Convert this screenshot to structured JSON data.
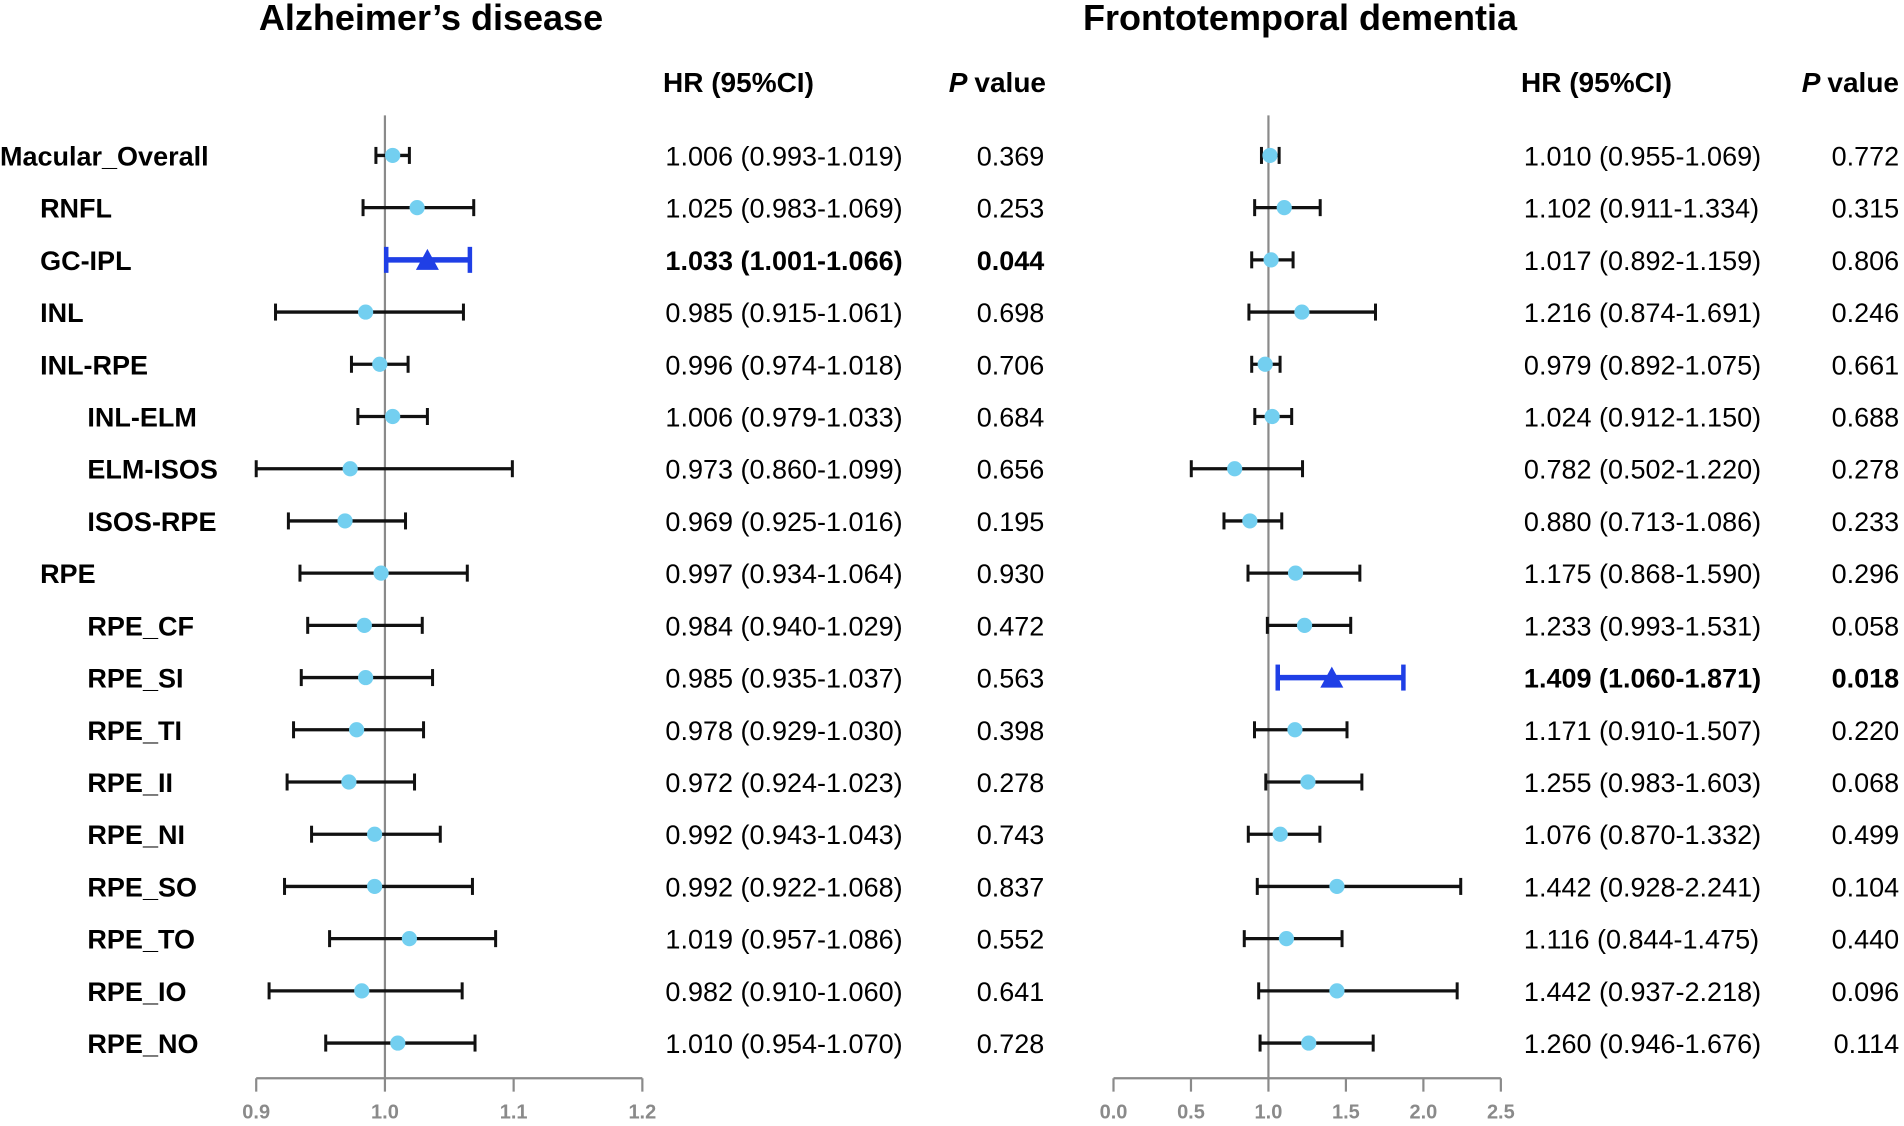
{
  "colors": {
    "point": "#73cff0",
    "significant": "#1f3fe6",
    "whisker": "#111111",
    "axis": "#8a8a8a"
  },
  "chart_data": {
    "type": "forest",
    "row_labels": [
      {
        "label": "Macular_Overall",
        "level": 0
      },
      {
        "label": "RNFL",
        "level": 1
      },
      {
        "label": "GC-IPL",
        "level": 1
      },
      {
        "label": "INL",
        "level": 1
      },
      {
        "label": "INL-RPE",
        "level": 1
      },
      {
        "label": "INL-ELM",
        "level": 2
      },
      {
        "label": "ELM-ISOS",
        "level": 2
      },
      {
        "label": "ISOS-RPE",
        "level": 2
      },
      {
        "label": "RPE",
        "level": 1
      },
      {
        "label": "RPE_CF",
        "level": 2
      },
      {
        "label": "RPE_SI",
        "level": 2
      },
      {
        "label": "RPE_TI",
        "level": 2
      },
      {
        "label": "RPE_II",
        "level": 2
      },
      {
        "label": "RPE_NI",
        "level": 2
      },
      {
        "label": "RPE_SO",
        "level": 2
      },
      {
        "label": "RPE_TO",
        "level": 2
      },
      {
        "label": "RPE_IO",
        "level": 2
      },
      {
        "label": "RPE_NO",
        "level": 2
      }
    ],
    "panels": [
      {
        "title": "Alzheimer’s disease",
        "hr_header": "HR (95%CI)",
        "p_header": {
          "italic": "P",
          "rest": "value"
        },
        "xlim": [
          0.9,
          1.2
        ],
        "xticks": [
          0.9,
          1.0,
          1.1,
          1.2
        ],
        "xtick_labels": [
          "0.9",
          "1.0",
          "1.1",
          "1.2"
        ],
        "reference_line": 1.0,
        "rows": [
          {
            "hr": 1.006,
            "lower": 0.993,
            "upper": 1.019,
            "hr_ci": "1.006 (0.993-1.019)",
            "p": "0.369",
            "significant": false
          },
          {
            "hr": 1.025,
            "lower": 0.983,
            "upper": 1.069,
            "hr_ci": "1.025 (0.983-1.069)",
            "p": "0.253",
            "significant": false
          },
          {
            "hr": 1.033,
            "lower": 1.001,
            "upper": 1.066,
            "hr_ci": "1.033 (1.001-1.066)",
            "p": "0.044",
            "significant": true
          },
          {
            "hr": 0.985,
            "lower": 0.915,
            "upper": 1.061,
            "hr_ci": "0.985 (0.915-1.061)",
            "p": "0.698",
            "significant": false
          },
          {
            "hr": 0.996,
            "lower": 0.974,
            "upper": 1.018,
            "hr_ci": "0.996 (0.974-1.018)",
            "p": "0.706",
            "significant": false
          },
          {
            "hr": 1.006,
            "lower": 0.979,
            "upper": 1.033,
            "hr_ci": "1.006 (0.979-1.033)",
            "p": "0.684",
            "significant": false
          },
          {
            "hr": 0.973,
            "lower": 0.86,
            "upper": 1.099,
            "hr_ci": "0.973 (0.860-1.099)",
            "p": "0.656",
            "significant": false
          },
          {
            "hr": 0.969,
            "lower": 0.925,
            "upper": 1.016,
            "hr_ci": "0.969 (0.925-1.016)",
            "p": "0.195",
            "significant": false
          },
          {
            "hr": 0.997,
            "lower": 0.934,
            "upper": 1.064,
            "hr_ci": "0.997 (0.934-1.064)",
            "p": "0.930",
            "significant": false
          },
          {
            "hr": 0.984,
            "lower": 0.94,
            "upper": 1.029,
            "hr_ci": "0.984 (0.940-1.029)",
            "p": "0.472",
            "significant": false
          },
          {
            "hr": 0.985,
            "lower": 0.935,
            "upper": 1.037,
            "hr_ci": "0.985 (0.935-1.037)",
            "p": "0.563",
            "significant": false
          },
          {
            "hr": 0.978,
            "lower": 0.929,
            "upper": 1.03,
            "hr_ci": "0.978 (0.929-1.030)",
            "p": "0.398",
            "significant": false
          },
          {
            "hr": 0.972,
            "lower": 0.924,
            "upper": 1.023,
            "hr_ci": "0.972 (0.924-1.023)",
            "p": "0.278",
            "significant": false
          },
          {
            "hr": 0.992,
            "lower": 0.943,
            "upper": 1.043,
            "hr_ci": "0.992 (0.943-1.043)",
            "p": "0.743",
            "significant": false
          },
          {
            "hr": 0.992,
            "lower": 0.922,
            "upper": 1.068,
            "hr_ci": "0.992 (0.922-1.068)",
            "p": "0.837",
            "significant": false
          },
          {
            "hr": 1.019,
            "lower": 0.957,
            "upper": 1.086,
            "hr_ci": "1.019 (0.957-1.086)",
            "p": "0.552",
            "significant": false
          },
          {
            "hr": 0.982,
            "lower": 0.91,
            "upper": 1.06,
            "hr_ci": "0.982 (0.910-1.060)",
            "p": "0.641",
            "significant": false
          },
          {
            "hr": 1.01,
            "lower": 0.954,
            "upper": 1.07,
            "hr_ci": "1.010 (0.954-1.070)",
            "p": "0.728",
            "significant": false
          }
        ]
      },
      {
        "title": "Frontotemporal dementia",
        "hr_header": "HR (95%CI)",
        "p_header": {
          "italic": "P",
          "rest": "value"
        },
        "xlim": [
          0.0,
          2.5
        ],
        "xticks": [
          0.0,
          0.5,
          1.0,
          1.5,
          2.0,
          2.5
        ],
        "xtick_labels": [
          "0.0",
          "0.5",
          "1.0",
          "1.5",
          "2.0",
          "2.5"
        ],
        "reference_line": 1.0,
        "rows": [
          {
            "hr": 1.01,
            "lower": 0.955,
            "upper": 1.069,
            "hr_ci": "1.010 (0.955-1.069)",
            "p": "0.772",
            "significant": false
          },
          {
            "hr": 1.102,
            "lower": 0.911,
            "upper": 1.334,
            "hr_ci": "1.102 (0.911-1.334)",
            "p": "0.315",
            "significant": false
          },
          {
            "hr": 1.017,
            "lower": 0.892,
            "upper": 1.159,
            "hr_ci": "1.017 (0.892-1.159)",
            "p": "0.806",
            "significant": false
          },
          {
            "hr": 1.216,
            "lower": 0.874,
            "upper": 1.691,
            "hr_ci": "1.216 (0.874-1.691)",
            "p": "0.246",
            "significant": false
          },
          {
            "hr": 0.979,
            "lower": 0.892,
            "upper": 1.075,
            "hr_ci": "0.979 (0.892-1.075)",
            "p": "0.661",
            "significant": false
          },
          {
            "hr": 1.024,
            "lower": 0.912,
            "upper": 1.15,
            "hr_ci": "1.024 (0.912-1.150)",
            "p": "0.688",
            "significant": false
          },
          {
            "hr": 0.782,
            "lower": 0.502,
            "upper": 1.22,
            "hr_ci": "0.782 (0.502-1.220)",
            "p": "0.278",
            "significant": false
          },
          {
            "hr": 0.88,
            "lower": 0.713,
            "upper": 1.086,
            "hr_ci": "0.880 (0.713-1.086)",
            "p": "0.233",
            "significant": false
          },
          {
            "hr": 1.175,
            "lower": 0.868,
            "upper": 1.59,
            "hr_ci": "1.175 (0.868-1.590)",
            "p": "0.296",
            "significant": false
          },
          {
            "hr": 1.233,
            "lower": 0.993,
            "upper": 1.531,
            "hr_ci": "1.233 (0.993-1.531)",
            "p": "0.058",
            "significant": false
          },
          {
            "hr": 1.409,
            "lower": 1.06,
            "upper": 1.871,
            "hr_ci": "1.409 (1.060-1.871)",
            "p": "0.018",
            "significant": true
          },
          {
            "hr": 1.171,
            "lower": 0.91,
            "upper": 1.507,
            "hr_ci": "1.171 (0.910-1.507)",
            "p": "0.220",
            "significant": false
          },
          {
            "hr": 1.255,
            "lower": 0.983,
            "upper": 1.603,
            "hr_ci": "1.255 (0.983-1.603)",
            "p": "0.068",
            "significant": false
          },
          {
            "hr": 1.076,
            "lower": 0.87,
            "upper": 1.332,
            "hr_ci": "1.076 (0.870-1.332)",
            "p": "0.499",
            "significant": false
          },
          {
            "hr": 1.442,
            "lower": 0.928,
            "upper": 2.241,
            "hr_ci": "1.442 (0.928-2.241)",
            "p": "0.104",
            "significant": false
          },
          {
            "hr": 1.116,
            "lower": 0.844,
            "upper": 1.475,
            "hr_ci": "1.116 (0.844-1.475)",
            "p": "0.440",
            "significant": false
          },
          {
            "hr": 1.442,
            "lower": 0.937,
            "upper": 2.218,
            "hr_ci": "1.442 (0.937-2.218)",
            "p": "0.096",
            "significant": false
          },
          {
            "hr": 1.26,
            "lower": 0.946,
            "upper": 1.676,
            "hr_ci": "1.260 (0.946-1.676)",
            "p": "0.114",
            "significant": false
          }
        ]
      }
    ]
  }
}
